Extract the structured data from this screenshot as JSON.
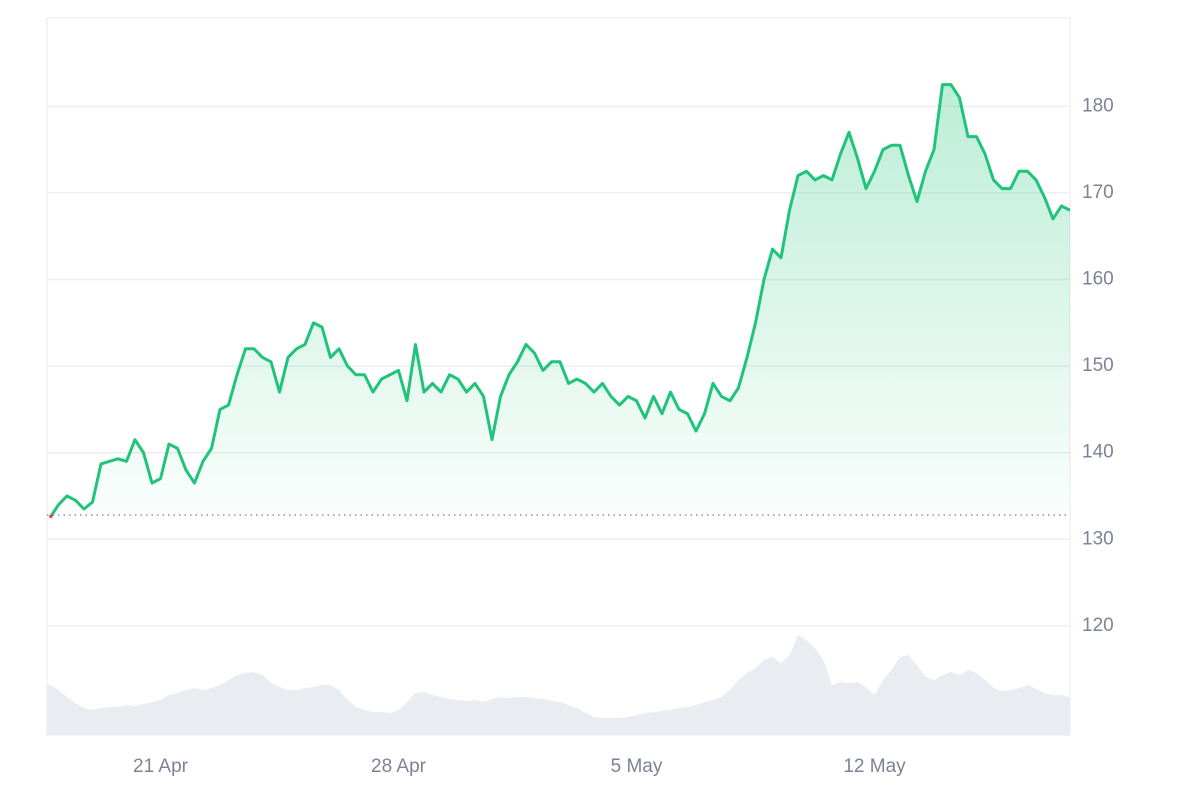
{
  "chart_data": {
    "type": "line",
    "categories": [
      null,
      null,
      null,
      null,
      null,
      null,
      null,
      null,
      null,
      null,
      null,
      null,
      null,
      "21 Apr",
      null,
      null,
      null,
      null,
      null,
      null,
      null,
      null,
      null,
      null,
      null,
      null,
      null,
      null,
      null,
      null,
      null,
      null,
      null,
      null,
      null,
      null,
      null,
      null,
      null,
      null,
      null,
      "28 Apr",
      null,
      null,
      null,
      null,
      null,
      null,
      null,
      null,
      null,
      null,
      null,
      null,
      null,
      null,
      null,
      null,
      null,
      null,
      null,
      null,
      null,
      null,
      null,
      null,
      null,
      null,
      null,
      "5 May",
      null,
      null,
      null,
      null,
      null,
      null,
      null,
      null,
      null,
      null,
      null,
      null,
      null,
      null,
      null,
      null,
      null,
      null,
      null,
      null,
      null,
      null,
      null,
      null,
      null,
      null,
      null,
      "12 May",
      null,
      null,
      null,
      null,
      null,
      null,
      null,
      null,
      null,
      null,
      null,
      null,
      null,
      null,
      null,
      null,
      null,
      null,
      null,
      null,
      null,
      null,
      null
    ],
    "series": [
      {
        "color": "#1fc47a",
        "values": [
          132.5,
          134,
          135,
          134.5,
          133.5,
          134.3,
          138.7,
          139,
          139.3,
          139,
          141.5,
          140,
          136.5,
          137,
          141,
          140.5,
          138,
          136.5,
          139,
          140.5,
          145,
          145.5,
          149,
          152,
          152,
          151,
          150.5,
          147,
          151,
          152,
          152.5,
          155,
          154.5,
          151,
          152,
          150,
          149,
          149,
          147,
          148.5,
          149,
          149.5,
          146,
          152.5,
          147,
          148,
          147,
          149,
          148.5,
          147,
          148,
          146.5,
          141.5,
          146.5,
          149,
          150.5,
          152.5,
          151.5,
          149.5,
          150.5,
          150.5,
          148,
          148.5,
          148,
          147,
          148,
          146.5,
          145.5,
          146.5,
          146,
          144,
          146.5,
          144.5,
          147,
          145,
          144.5,
          142.5,
          144.5,
          148,
          146.5,
          146,
          147.5,
          151,
          155,
          160,
          163.5,
          162.5,
          168,
          172,
          172.5,
          171.5,
          172,
          171.5,
          174.5,
          177,
          174,
          170.5,
          172.5,
          175,
          175.5,
          175.5,
          172,
          169,
          172.5,
          175,
          182.5,
          182.5,
          181,
          176.5,
          176.5,
          174.5,
          171.5,
          170.5,
          170.5,
          172.5,
          172.5,
          171.5,
          169.5,
          167,
          168.5,
          168
        ]
      }
    ],
    "below_color": "#ea3943",
    "baseline": 132.8,
    "volume": {
      "color": "#e9edf1",
      "values": [
        50,
        45,
        38,
        32,
        27,
        25,
        27,
        28,
        28,
        30,
        29,
        31,
        33,
        35,
        40,
        42,
        45,
        47,
        45,
        47,
        50,
        55,
        60,
        62,
        63,
        60,
        52,
        48,
        45,
        45,
        47,
        48,
        50,
        50,
        45,
        35,
        28,
        25,
        23,
        23,
        22,
        25,
        33,
        42,
        43,
        40,
        38,
        36,
        35,
        34,
        35,
        33,
        36,
        38,
        37,
        38,
        38,
        37,
        36,
        34,
        33,
        30,
        27,
        22,
        18,
        17,
        17,
        17,
        18,
        20,
        22,
        23,
        24,
        25,
        27,
        28,
        30,
        33,
        35,
        38,
        45,
        55,
        62,
        67,
        75,
        78,
        72,
        80,
        100,
        95,
        87,
        75,
        50,
        53,
        52,
        53,
        48,
        40,
        55,
        65,
        78,
        80,
        70,
        58,
        55,
        60,
        63,
        60,
        65,
        62,
        55,
        47,
        44,
        45,
        47,
        50,
        46,
        42,
        40,
        40,
        38
      ]
    },
    "ylim": [
      107.4,
      190.2
    ],
    "yticks": [
      120,
      130,
      140,
      150,
      160,
      170,
      180
    ],
    "grid": true
  }
}
